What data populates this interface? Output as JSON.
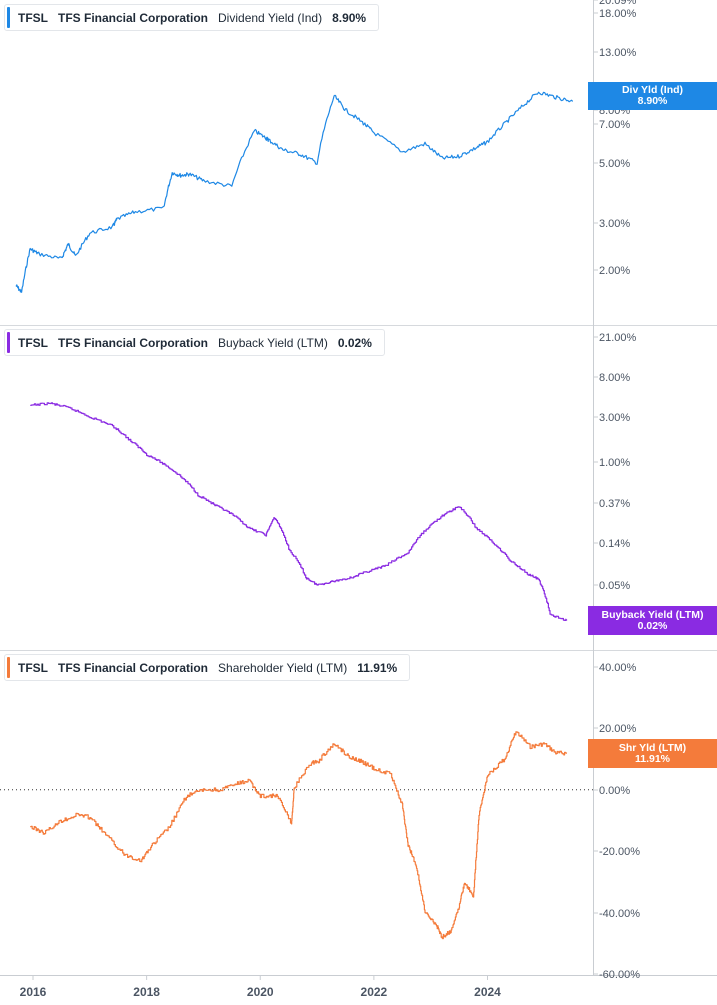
{
  "chart_data": [
    {
      "type": "line",
      "ticker": "TFSL",
      "company": "TFS Financial Corporation",
      "metric": "Dividend Yield (Ind)",
      "last_value": "8.90%",
      "tag_label": "Div Yld (Ind)",
      "tag_value": "8.90%",
      "color": "#1e88e5",
      "scale": "log",
      "y_ticks": [
        20.09,
        18.0,
        13.0,
        8.0,
        7.0,
        5.0,
        3.0,
        2.0
      ],
      "y_tick_labels": [
        "20.09%",
        "18.00%",
        "13.00%",
        "8.00%",
        "7.00%",
        "5.00%",
        "3.00%",
        "2.00%"
      ],
      "x": [
        2015.7,
        2015.8,
        2015.95,
        2016.1,
        2016.5,
        2016.62,
        2016.75,
        2017.0,
        2017.4,
        2017.48,
        2017.8,
        2018.3,
        2018.45,
        2018.6,
        2018.75,
        2019.0,
        2019.5,
        2019.9,
        2020.1,
        2020.15,
        2020.4,
        2020.7,
        2021.0,
        2021.3,
        2021.5,
        2021.8,
        2022.0,
        2022.5,
        2022.9,
        2023.2,
        2023.5,
        2023.8,
        2024.0,
        2024.3,
        2024.6,
        2024.9,
        2025.2,
        2025.5
      ],
      "values": [
        1.75,
        1.65,
        2.4,
        2.3,
        2.2,
        2.5,
        2.25,
        2.75,
        2.9,
        3.1,
        3.3,
        3.4,
        4.6,
        4.5,
        4.55,
        4.3,
        4.1,
        6.6,
        6.2,
        6.1,
        5.6,
        5.4,
        5.0,
        9.0,
        8.0,
        7.1,
        6.5,
        5.5,
        5.9,
        5.2,
        5.3,
        5.7,
        6.0,
        7.0,
        8.2,
        9.3,
        8.9,
        8.6
      ],
      "series_note": "approximate trace"
    },
    {
      "type": "line",
      "ticker": "TFSL",
      "company": "TFS Financial Corporation",
      "metric": "Buyback Yield (LTM)",
      "last_value": "0.02%",
      "tag_label": "Buyback Yield (LTM)",
      "tag_value": "0.02%",
      "color": "#8a2be2",
      "scale": "log",
      "y_ticks": [
        21.0,
        8.0,
        3.0,
        1.0,
        0.37,
        0.14,
        0.05
      ],
      "y_tick_labels": [
        "21.00%",
        "8.00%",
        "3.00%",
        "1.00%",
        "0.37%",
        "0.14%",
        "0.05%"
      ],
      "x": [
        2015.95,
        2016.3,
        2016.6,
        2017.0,
        2017.4,
        2017.7,
        2018.0,
        2018.3,
        2018.6,
        2018.9,
        2019.2,
        2019.5,
        2019.8,
        2020.1,
        2020.25,
        2020.5,
        2020.8,
        2021.0,
        2021.3,
        2021.6,
        2021.9,
        2022.2,
        2022.6,
        2022.9,
        2023.2,
        2023.5,
        2023.8,
        2024.1,
        2024.4,
        2024.7,
        2024.9,
        2025.1,
        2025.4
      ],
      "values": [
        4.0,
        4.2,
        3.8,
        3.0,
        2.4,
        1.7,
        1.2,
        0.95,
        0.7,
        0.45,
        0.35,
        0.28,
        0.2,
        0.17,
        0.26,
        0.12,
        0.06,
        0.05,
        0.055,
        0.06,
        0.07,
        0.08,
        0.11,
        0.19,
        0.27,
        0.34,
        0.2,
        0.14,
        0.09,
        0.066,
        0.057,
        0.024,
        0.021
      ]
    },
    {
      "type": "line",
      "ticker": "TFSL",
      "company": "TFS Financial Corporation",
      "metric": "Shareholder Yield (LTM)",
      "last_value": "11.91%",
      "tag_label": "Shr Yld (LTM)",
      "tag_value": "11.91%",
      "color": "#f47b3b",
      "scale": "linear",
      "ylim": [
        -60,
        40
      ],
      "y_ticks": [
        40,
        20,
        0,
        -20,
        -40,
        -60
      ],
      "y_tick_labels": [
        "40.00%",
        "20.00%",
        "0.00%",
        "-20.00%",
        "-40.00%",
        "-60.00%"
      ],
      "zero_line": true,
      "x_ticks": [
        2016,
        2018,
        2020,
        2022,
        2024
      ],
      "x": [
        2015.95,
        2016.2,
        2016.5,
        2016.8,
        2017.0,
        2017.3,
        2017.6,
        2017.9,
        2018.1,
        2018.4,
        2018.7,
        2019.0,
        2019.3,
        2019.6,
        2019.8,
        2020.0,
        2020.3,
        2020.55,
        2020.6,
        2020.9,
        2021.0,
        2021.3,
        2021.55,
        2021.8,
        2022.0,
        2022.3,
        2022.5,
        2022.6,
        2022.75,
        2022.9,
        2023.1,
        2023.2,
        2023.35,
        2023.5,
        2023.6,
        2023.75,
        2023.85,
        2024.0,
        2024.3,
        2024.5,
        2024.75,
        2025.0,
        2025.2,
        2025.4
      ],
      "values": [
        -12,
        -14,
        -10,
        -8,
        -9,
        -15,
        -21,
        -23,
        -18,
        -12,
        -2,
        0,
        0,
        2,
        3,
        -2,
        -2,
        -11,
        1,
        9,
        9,
        15,
        11,
        9,
        7,
        5,
        -5,
        -18,
        -25,
        -40,
        -44,
        -48,
        -46,
        -38,
        -30,
        -35,
        -8,
        5,
        10,
        19,
        14,
        15,
        12,
        11.91
      ]
    }
  ]
}
